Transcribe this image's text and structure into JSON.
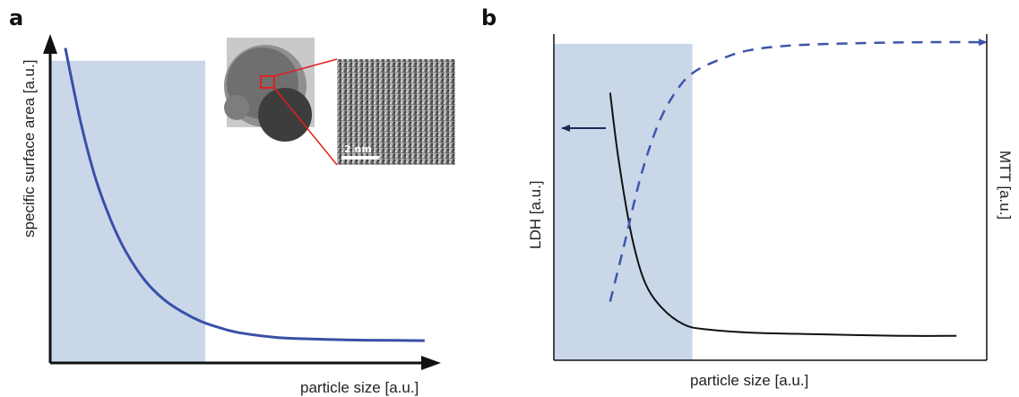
{
  "panels": {
    "a": {
      "label": "a"
    },
    "b": {
      "label": "b"
    }
  },
  "inset": {
    "scale_bar_label": "2 nm"
  },
  "colors": {
    "region_fill": "#c9d7e9",
    "curve_blue": "#3a4fa8",
    "curve_black": "#111111",
    "dashed_blue": "#3d55aa",
    "arrow_dark": "#1e2a55",
    "inset_highlight": "#e02020"
  },
  "chart_data": [
    {
      "type": "line",
      "panel": "a",
      "xlabel": "particle size [a.u.]",
      "ylabel": "specific surface area [a.u.]",
      "xlim": [
        0,
        10
      ],
      "ylim": [
        0,
        10
      ],
      "shaded_region": {
        "x": [
          0,
          4.1
        ],
        "y": [
          0,
          9.5
        ]
      },
      "series": [
        {
          "x": [
            0.4,
            0.8,
            1.2,
            1.6,
            2.0,
            2.5,
            3.0,
            3.5,
            4.0,
            4.5,
            5.0,
            6.0,
            7.0,
            8.0,
            9.0,
            9.9
          ],
          "values": [
            9.9,
            7.6,
            5.8,
            4.5,
            3.5,
            2.6,
            2.0,
            1.6,
            1.3,
            1.1,
            0.95,
            0.8,
            0.75,
            0.72,
            0.71,
            0.7
          ]
        }
      ],
      "axes": "arrows",
      "grid": false
    },
    {
      "type": "line",
      "panel": "b",
      "xlabel": "particle size [a.u.]",
      "ylabel_left": "LDH [a.u.]",
      "ylabel_right": "MTT [a.u.]",
      "xlim": [
        0,
        10
      ],
      "ylim": [
        0,
        10
      ],
      "shaded_region": {
        "x": [
          0,
          3.2
        ],
        "y": [
          0,
          9.7
        ]
      },
      "series": [
        {
          "axis": "left",
          "style": "solid",
          "x": [
            1.3,
            1.5,
            1.8,
            2.1,
            2.5,
            3.0,
            3.5,
            4.5,
            6.0,
            8.0,
            9.3
          ],
          "values": [
            8.2,
            6.1,
            3.8,
            2.4,
            1.6,
            1.1,
            0.95,
            0.85,
            0.8,
            0.75,
            0.75
          ]
        },
        {
          "axis": "right",
          "style": "dashed",
          "x": [
            1.3,
            1.6,
            2.0,
            2.4,
            2.8,
            3.2,
            3.8,
            4.5,
            5.5,
            7.0,
            8.5,
            10.0
          ],
          "values": [
            1.8,
            3.4,
            5.6,
            7.2,
            8.2,
            8.8,
            9.2,
            9.5,
            9.65,
            9.72,
            9.75,
            9.75
          ]
        }
      ],
      "grid": false
    }
  ]
}
